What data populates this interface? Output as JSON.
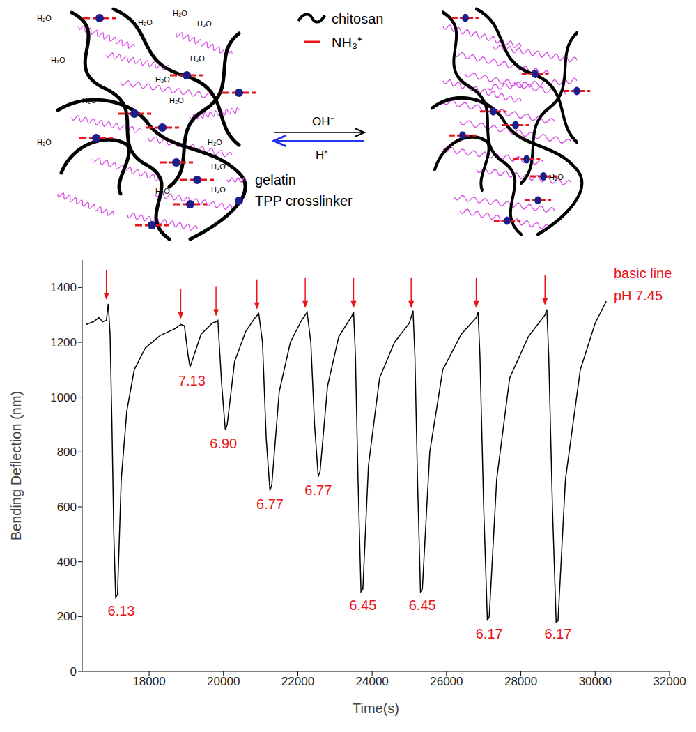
{
  "diagram": {
    "legend": {
      "chitosan": "chitosan",
      "amine": "NH₃⁺",
      "gelatin": "gelatin",
      "crosslinker": "TPP crosslinker"
    },
    "water": "H₂O",
    "forward": "OH⁻",
    "reverse": "H⁺"
  },
  "chart_data": {
    "type": "line",
    "x_label": "Time(s)",
    "y_label": "Bending Deflection (nm)",
    "color": "#000000",
    "x": [
      16300,
      16500,
      16650,
      16750,
      16850,
      16900,
      16950,
      17000,
      17050,
      17100,
      17150,
      17250,
      17400,
      17600,
      17900,
      18300,
      18700,
      18850,
      18950,
      19050,
      19100,
      19200,
      19400,
      19700,
      19800,
      19850,
      19950,
      20050,
      20100,
      20300,
      20600,
      20850,
      20950,
      21050,
      21150,
      21250,
      21300,
      21500,
      21800,
      22100,
      22250,
      22350,
      22450,
      22550,
      22600,
      22800,
      23100,
      23450,
      23500,
      23550,
      23620,
      23700,
      23750,
      23900,
      24200,
      24600,
      25000,
      25100,
      25150,
      25220,
      25300,
      25350,
      25550,
      25900,
      26400,
      26800,
      26850,
      26900,
      27000,
      27100,
      27150,
      27350,
      27700,
      28200,
      28650,
      28700,
      28750,
      28850,
      28950,
      29000,
      29200,
      29600,
      30000,
      30300
    ],
    "values": [
      1265,
      1275,
      1290,
      1275,
      1280,
      1340,
      1230,
      900,
      500,
      270,
      280,
      700,
      950,
      1100,
      1180,
      1225,
      1250,
      1265,
      1260,
      1150,
      1110,
      1150,
      1230,
      1270,
      1275,
      1280,
      1050,
      880,
      900,
      1130,
      1240,
      1290,
      1305,
      1200,
      850,
      660,
      680,
      1020,
      1200,
      1280,
      1310,
      1200,
      900,
      710,
      730,
      1040,
      1220,
      1295,
      1310,
      1150,
      700,
      290,
      300,
      750,
      1070,
      1200,
      1270,
      1315,
      1150,
      700,
      290,
      300,
      800,
      1100,
      1230,
      1290,
      1310,
      1150,
      600,
      185,
      200,
      700,
      1070,
      1220,
      1300,
      1320,
      1150,
      600,
      180,
      185,
      700,
      1100,
      1270,
      1350
    ],
    "xlim": [
      16200,
      32000
    ],
    "xticks": [
      18000,
      20000,
      22000,
      24000,
      26000,
      28000,
      30000,
      32000
    ],
    "ylim": [
      0,
      1500
    ],
    "yticks": [
      0,
      200,
      400,
      600,
      800,
      1000,
      1200,
      1400
    ],
    "additions": [
      {
        "x": 16850,
        "y": 1350
      },
      {
        "x": 18850,
        "y": 1280
      },
      {
        "x": 19800,
        "y": 1290
      },
      {
        "x": 20900,
        "y": 1315
      },
      {
        "x": 22200,
        "y": 1320
      },
      {
        "x": 23500,
        "y": 1320
      },
      {
        "x": 25050,
        "y": 1320
      },
      {
        "x": 26800,
        "y": 1320
      },
      {
        "x": 28650,
        "y": 1330
      }
    ],
    "annotations": [
      {
        "text": "6.13",
        "x": 17250,
        "y": 240
      },
      {
        "text": "7.13",
        "x": 19150,
        "y": 1080
      },
      {
        "text": "6.90",
        "x": 20000,
        "y": 850
      },
      {
        "text": "6.77",
        "x": 21250,
        "y": 630
      },
      {
        "text": "6.77",
        "x": 22550,
        "y": 680
      },
      {
        "text": "6.45",
        "x": 23750,
        "y": 260
      },
      {
        "text": "6.45",
        "x": 25350,
        "y": 260
      },
      {
        "text": "6.17",
        "x": 27150,
        "y": 155
      },
      {
        "text": "6.17",
        "x": 29000,
        "y": 155
      },
      {
        "text": "basic line",
        "x": 30500,
        "y": 1470
      },
      {
        "text": "pH 7.45",
        "x": 30500,
        "y": 1390
      }
    ]
  }
}
